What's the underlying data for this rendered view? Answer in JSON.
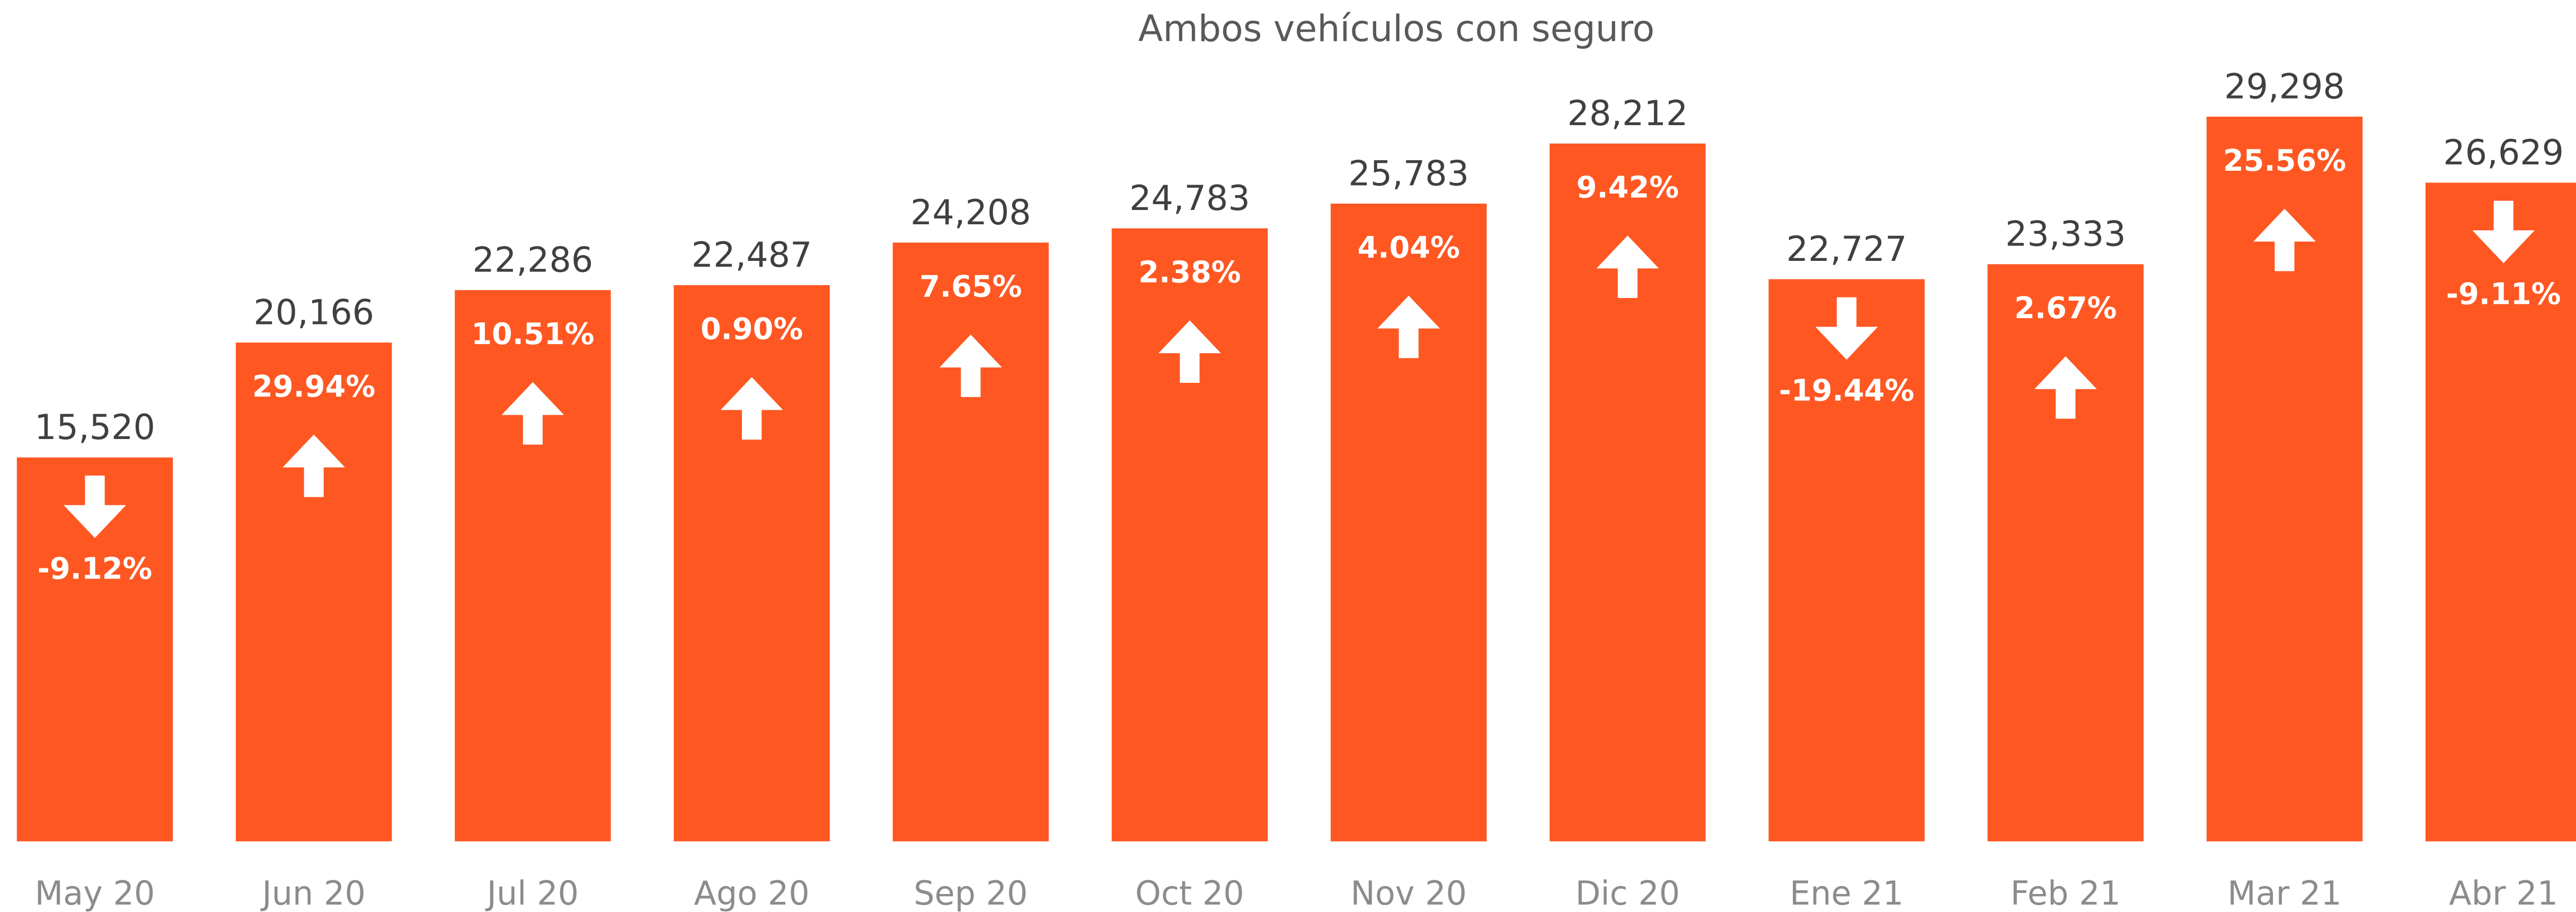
{
  "chart_data": {
    "type": "bar",
    "title": "Ambos vehículos con seguro",
    "categories": [
      "May 20",
      "Jun 20",
      "Jul 20",
      "Ago 20",
      "Sep 20",
      "Oct 20",
      "Nov 20",
      "Dic 20",
      "Ene 21",
      "Feb 21",
      "Mar 21",
      "Abr 21"
    ],
    "values": [
      15520,
      20166,
      22286,
      22487,
      24208,
      24783,
      25783,
      28212,
      22727,
      23333,
      29298,
      26629
    ],
    "value_labels": [
      "15,520",
      "20,166",
      "22,286",
      "22,487",
      "24,208",
      "24,783",
      "25,783",
      "28,212",
      "22,727",
      "23,333",
      "29,298",
      "26,629"
    ],
    "changes": [
      -9.12,
      29.94,
      10.51,
      0.9,
      7.65,
      2.38,
      4.04,
      9.42,
      -19.44,
      2.67,
      25.56,
      -9.11
    ],
    "change_labels": [
      "-9.12%",
      "29.94%",
      "10.51%",
      "0.90%",
      "7.65%",
      "2.38%",
      "4.04%",
      "9.42%",
      "-19.44%",
      "2.67%",
      "25.56%",
      "-9.11%"
    ],
    "color": "#fe5722",
    "arrow_color": "#ffffff"
  }
}
